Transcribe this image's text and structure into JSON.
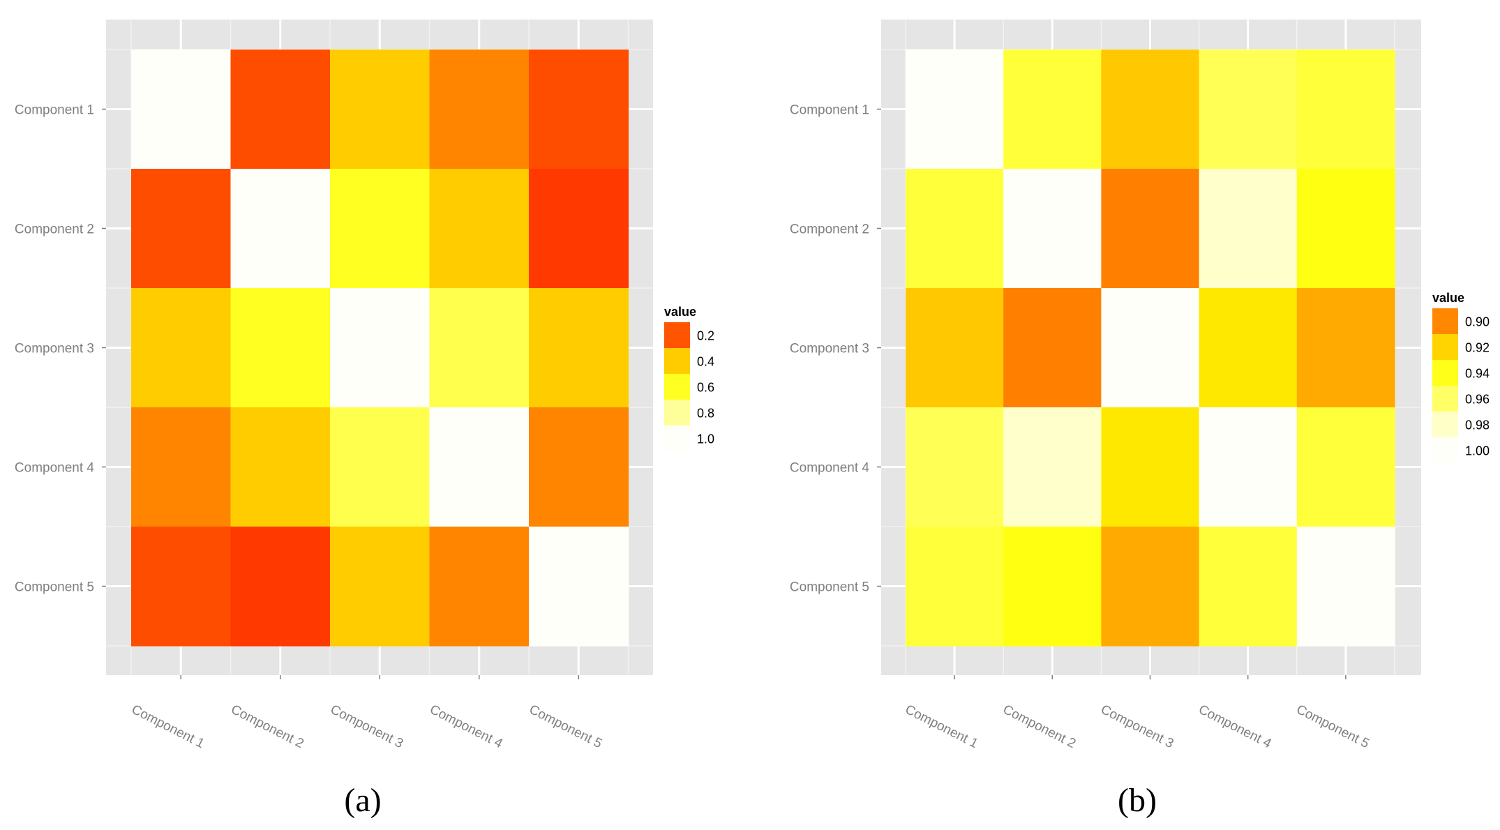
{
  "chart_data": [
    {
      "type": "heatmap",
      "caption": "(a)",
      "x_categories": [
        "Component 1",
        "Component 2",
        "Component 3",
        "Component 4",
        "Component 5"
      ],
      "y_categories": [
        "Component 1",
        "Component 2",
        "Component 3",
        "Component 4",
        "Component 5"
      ],
      "values": [
        [
          1.0,
          0.2,
          0.4,
          0.3,
          0.2
        ],
        [
          0.2,
          1.0,
          0.6,
          0.4,
          0.12
        ],
        [
          0.4,
          0.6,
          1.0,
          0.7,
          0.4
        ],
        [
          0.3,
          0.4,
          0.7,
          1.0,
          0.3
        ],
        [
          0.2,
          0.12,
          0.4,
          0.3,
          1.0
        ]
      ],
      "legend": {
        "title": "value",
        "ticks": [
          0.2,
          0.4,
          0.6,
          0.8,
          1.0
        ],
        "tick_labels": [
          "0.2",
          "0.4",
          "0.6",
          "0.8",
          "1.0"
        ],
        "colors": [
          "#ff5500",
          "#ffcc00",
          "#ffff22",
          "#ffff99",
          "#fffffa"
        ]
      },
      "scale_domain": [
        0.0,
        1.0
      ],
      "color_stops": [
        {
          "value": 0.0,
          "color": "#ff1a00"
        },
        {
          "value": 0.2,
          "color": "#ff4d00"
        },
        {
          "value": 0.3,
          "color": "#ff8400"
        },
        {
          "value": 0.4,
          "color": "#ffcc00"
        },
        {
          "value": 0.6,
          "color": "#ffff22"
        },
        {
          "value": 0.7,
          "color": "#ffff4d"
        },
        {
          "value": 0.8,
          "color": "#ffff99"
        },
        {
          "value": 1.0,
          "color": "#fffffa"
        }
      ]
    },
    {
      "type": "heatmap",
      "caption": "(b)",
      "x_categories": [
        "Component 1",
        "Component 2",
        "Component 3",
        "Component 4",
        "Component 5"
      ],
      "y_categories": [
        "Component 1",
        "Component 2",
        "Component 3",
        "Component 4",
        "Component 5"
      ],
      "values": [
        [
          1.0,
          0.955,
          0.92,
          0.96,
          0.955
        ],
        [
          0.955,
          1.0,
          0.9,
          0.985,
          0.945
        ],
        [
          0.92,
          0.9,
          1.0,
          0.935,
          0.91
        ],
        [
          0.96,
          0.985,
          0.935,
          1.0,
          0.955
        ],
        [
          0.955,
          0.945,
          0.91,
          0.955,
          1.0
        ]
      ],
      "legend": {
        "title": "value",
        "ticks": [
          0.9,
          0.92,
          0.94,
          0.96,
          0.98,
          1.0
        ],
        "tick_labels": [
          "0.90",
          "0.92",
          "0.94",
          "0.96",
          "0.98",
          "1.00"
        ],
        "colors": [
          "#ff8800",
          "#ffd400",
          "#ffff1a",
          "#ffff66",
          "#ffffc8",
          "#fffffa"
        ]
      },
      "scale_domain": [
        0.9,
        1.0
      ],
      "color_stops": [
        {
          "value": 0.9,
          "color": "#ff8000"
        },
        {
          "value": 0.91,
          "color": "#ffaa00"
        },
        {
          "value": 0.92,
          "color": "#ffc800"
        },
        {
          "value": 0.935,
          "color": "#ffe800"
        },
        {
          "value": 0.945,
          "color": "#ffff12"
        },
        {
          "value": 0.955,
          "color": "#ffff3a"
        },
        {
          "value": 0.96,
          "color": "#ffff55"
        },
        {
          "value": 0.985,
          "color": "#ffffcc"
        },
        {
          "value": 1.0,
          "color": "#fffffa"
        }
      ]
    }
  ]
}
